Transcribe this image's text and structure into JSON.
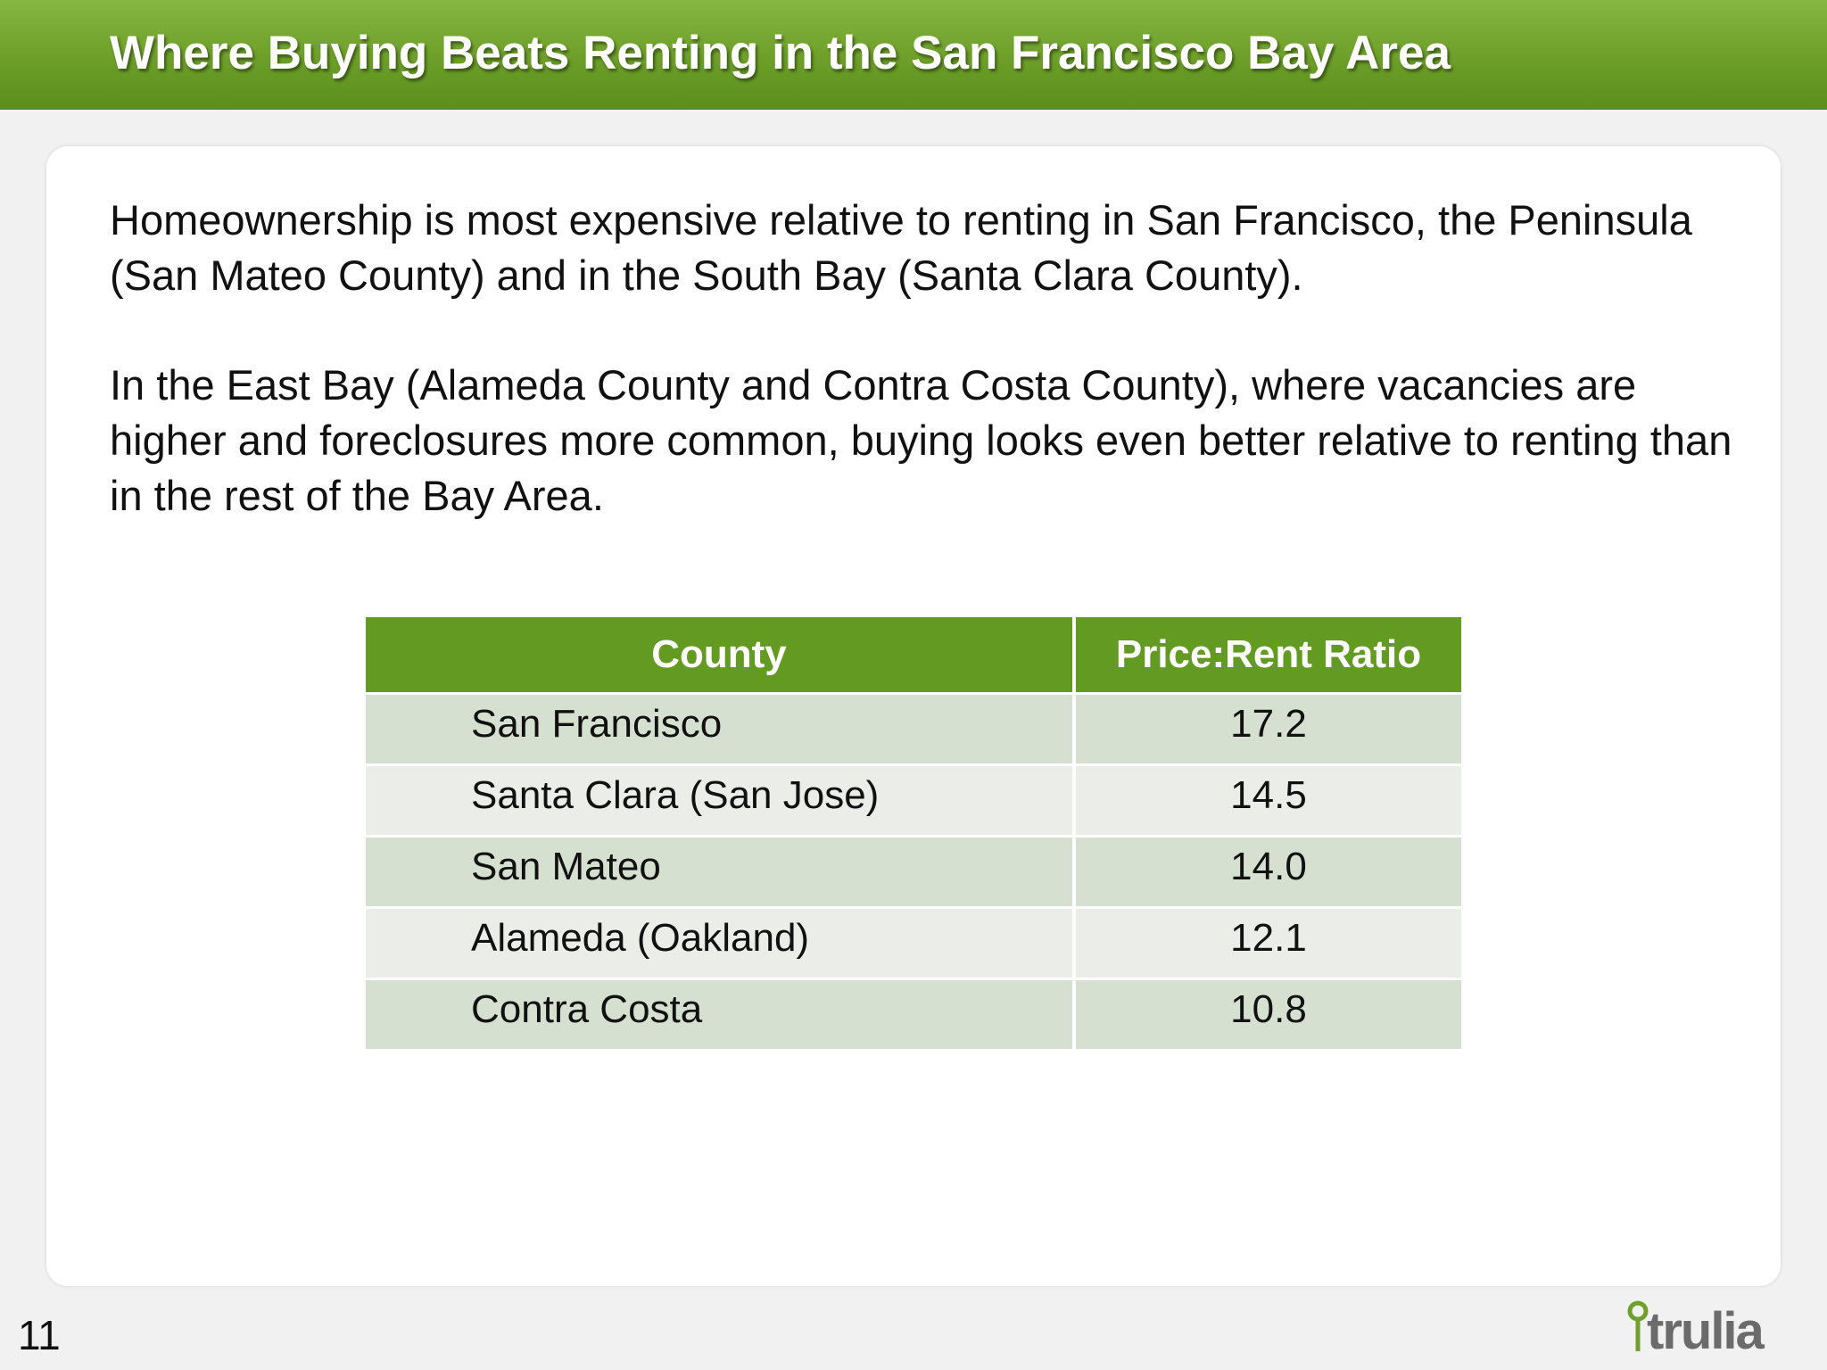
{
  "header": {
    "title": "Where Buying Beats Renting in the San Francisco Bay Area",
    "color": "#6ea02a"
  },
  "body": {
    "paragraph_1": "Homeownership is most expensive relative to renting in San Francisco, the Peninsula (San Mateo County) and in the South Bay (Santa Clara County).",
    "paragraph_2": "In the East Bay (Alameda County and Contra Costa County), where vacancies are higher and foreclosures more common, buying looks even better relative to renting than in the rest of the Bay Area."
  },
  "table": {
    "columns": [
      "County",
      "Price:Rent Ratio"
    ],
    "rows": [
      {
        "county": "San Francisco",
        "ratio": "17.2"
      },
      {
        "county": "Santa Clara (San Jose)",
        "ratio": "14.5"
      },
      {
        "county": "San Mateo",
        "ratio": "14.0"
      },
      {
        "county": "Alameda (Oakland)",
        "ratio": "12.1"
      },
      {
        "county": "Contra Costa",
        "ratio": "10.8"
      }
    ],
    "header_color": "#629a22",
    "row_colors": [
      "#d6e0d0",
      "#ebeee8"
    ]
  },
  "footer": {
    "page_number": "11",
    "logo_text": "trulia",
    "logo_icon": "map-pin-icon"
  }
}
